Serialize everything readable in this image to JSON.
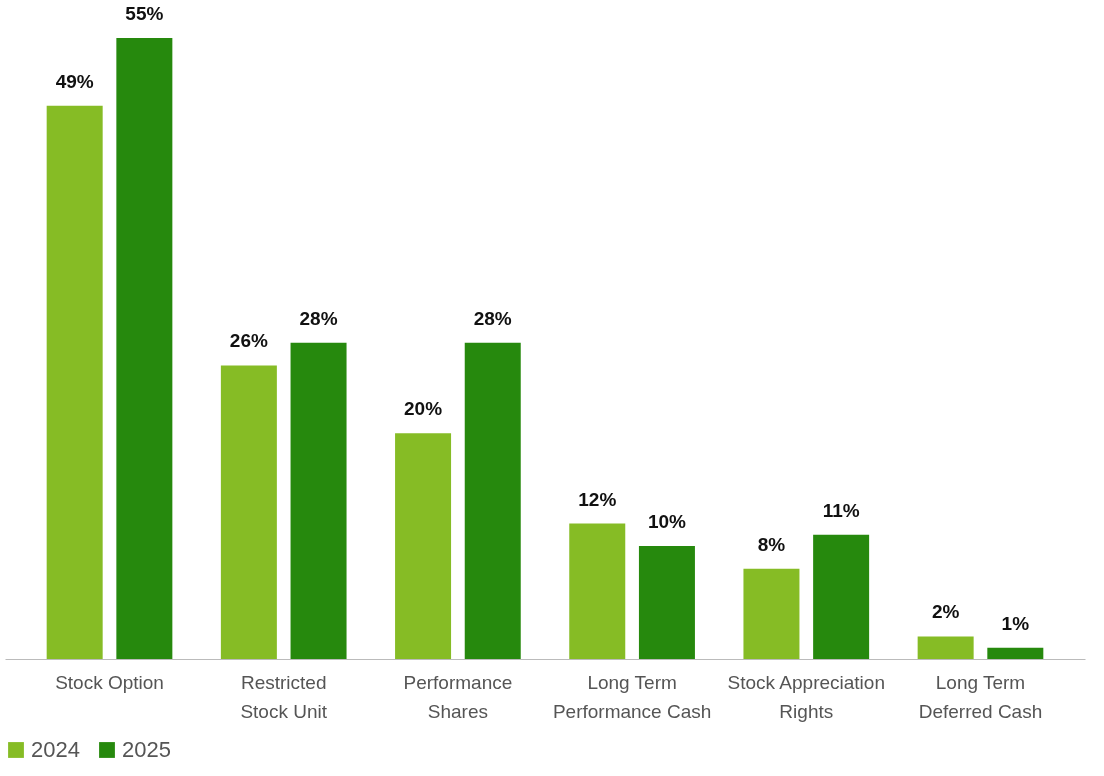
{
  "chart_data": {
    "type": "bar",
    "categories": [
      "Stock Option",
      "Restricted Stock Unit",
      "Performance Shares",
      "Long Term Performance Cash",
      "Stock Appreciation Rights",
      "Long Term Deferred Cash"
    ],
    "series": [
      {
        "name": "2024",
        "color": "#86bc25",
        "values": [
          49,
          26,
          20,
          12,
          8,
          2
        ],
        "value_labels": [
          "49%",
          "26%",
          "20%",
          "12%",
          "8%",
          "2%"
        ]
      },
      {
        "name": "2025",
        "color": "#26890d",
        "values": [
          55,
          28,
          28,
          10,
          11,
          1
        ],
        "value_labels": [
          "55%",
          "28%",
          "28%",
          "10%",
          "11%",
          "1%"
        ]
      }
    ],
    "legend": "bottom"
  }
}
